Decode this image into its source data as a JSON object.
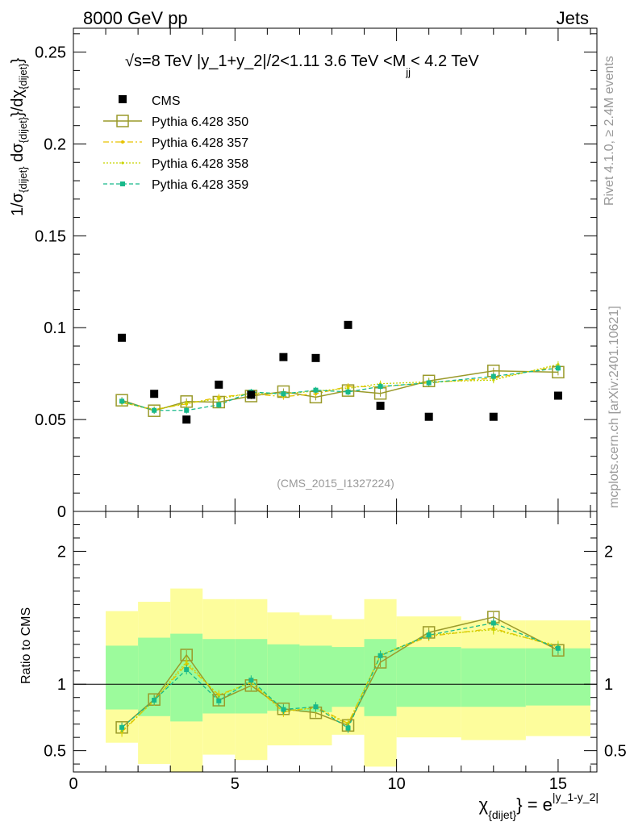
{
  "header": {
    "left": "8000 GeV pp",
    "right": "Jets"
  },
  "side": {
    "rivet": "Rivet 4.1.0, ≥ 2.4M events",
    "mcplots": "mcplots.cern.ch [arXiv:2401.10621]"
  },
  "colors": {
    "data": "#000000",
    "p350": "#9a9a2a",
    "p357": "#e6c200",
    "p358": "#c8d400",
    "p359": "#18b98a",
    "band_inner": "#9cfb9c",
    "band_outer": "#fdfd9c",
    "watermark": "#999999"
  },
  "chart_data": {
    "type": "scatter",
    "title": "√s=8 TeV |y_1+y_2|/2<1.11 3.6 TeV <M_jj< 4.2 TeV",
    "title_parts": {
      "sqrt": "√",
      "main": "s=8 TeV |y_1+y_2|/2<1.11 3.6 TeV <M",
      "sub": "jj",
      "end": "< 4.2 TeV"
    },
    "analysis_id": "(CMS_2015_I1327224)",
    "ylabel": "1/σ_{dijet} dσ_{dijet}/dχ_{dijet}",
    "ylabel_parts": {
      "a": "1/σ",
      "a_sub": "{dijet}",
      "b": " dσ",
      "b_sub": "{dijet}",
      "c": "}/dχ",
      "c_sub": "{dijet}",
      "d": "}"
    },
    "xlabel_parts": {
      "a": "χ",
      "a_sub": "{dijet}",
      "b": "} = e",
      "b_sup": "|y_1-y_2|"
    },
    "ratio_ylabel": "Ratio to CMS",
    "xlim": [
      0,
      16.2
    ],
    "ylim": [
      0,
      0.263
    ],
    "ratio_ylim": [
      0.34,
      2.3
    ],
    "x_ticks": [
      0,
      5,
      10,
      15
    ],
    "x_tick_labels": [
      "0",
      "5",
      "10",
      "15"
    ],
    "y_ticks": [
      0,
      0.05,
      0.1,
      0.15,
      0.2,
      0.25
    ],
    "y_tick_labels": [
      "0",
      "0.05",
      "0.1",
      "0.15",
      "0.2",
      "0.25"
    ],
    "ratio_ticks": [
      0.5,
      1,
      2
    ],
    "ratio_tick_labels": [
      "0.5",
      "1",
      "2"
    ],
    "bin_edges": [
      1,
      2,
      3,
      4,
      5,
      6,
      7,
      8,
      9,
      10,
      12,
      14,
      16
    ],
    "bin_centers": [
      1.5,
      2.5,
      3.5,
      4.5,
      5.5,
      6.5,
      7.5,
      8.5,
      9.5,
      11,
      13,
      15
    ],
    "legend_position": "top-left",
    "series": [
      {
        "name": "CMS",
        "style": "data",
        "values": [
          0.0945,
          0.064,
          0.05,
          0.069,
          0.0635,
          0.084,
          0.0835,
          0.1015,
          0.0575,
          0.0515,
          0.0515,
          0.063
        ]
      },
      {
        "name": "Pythia 6.428 350",
        "style": "p350",
        "values": [
          0.0605,
          0.0548,
          0.0598,
          0.0595,
          0.0628,
          0.0652,
          0.0622,
          0.0658,
          0.0642,
          0.071,
          0.0765,
          0.0758
        ],
        "ratio": [
          0.675,
          0.885,
          1.22,
          0.88,
          0.99,
          0.815,
          0.785,
          0.69,
          1.165,
          1.39,
          1.505,
          1.255
        ]
      },
      {
        "name": "Pythia 6.428 357",
        "style": "p357",
        "values": [
          0.0592,
          0.0555,
          0.0585,
          0.0622,
          0.064,
          0.0625,
          0.064,
          0.068,
          0.0678,
          0.07,
          0.0725,
          0.079
        ],
        "ratio": [
          0.64,
          0.88,
          1.15,
          0.92,
          1.01,
          0.79,
          0.83,
          0.705,
          1.215,
          1.36,
          1.42,
          1.28
        ]
      },
      {
        "name": "Pythia 6.428 358",
        "style": "p358",
        "values": [
          0.0595,
          0.055,
          0.059,
          0.0612,
          0.0645,
          0.064,
          0.0655,
          0.067,
          0.0695,
          0.0705,
          0.0715,
          0.08
        ],
        "ratio": [
          0.65,
          0.875,
          1.17,
          0.91,
          1.02,
          0.8,
          0.82,
          0.7,
          1.22,
          1.37,
          1.41,
          1.29
        ]
      },
      {
        "name": "Pythia 6.428 359",
        "style": "p359",
        "values": [
          0.06,
          0.055,
          0.055,
          0.058,
          0.065,
          0.064,
          0.066,
          0.065,
          0.068,
          0.07,
          0.0735,
          0.078
        ],
        "ratio": [
          0.675,
          0.88,
          1.11,
          0.875,
          1.03,
          0.81,
          0.83,
          0.67,
          1.215,
          1.37,
          1.46,
          1.27
        ]
      }
    ],
    "band_inner": {
      "lo": [
        0.81,
        0.76,
        0.72,
        0.78,
        0.78,
        0.8,
        0.79,
        0.83,
        0.76,
        0.83,
        0.83,
        0.84
      ],
      "hi": [
        1.29,
        1.35,
        1.38,
        1.34,
        1.34,
        1.3,
        1.29,
        1.28,
        1.34,
        1.28,
        1.27,
        1.27
      ]
    },
    "band_outer": {
      "lo": [
        0.56,
        0.4,
        0.34,
        0.47,
        0.43,
        0.54,
        0.54,
        0.62,
        0.38,
        0.6,
        0.58,
        0.61
      ],
      "hi": [
        1.55,
        1.62,
        1.72,
        1.64,
        1.64,
        1.54,
        1.52,
        1.49,
        1.64,
        1.51,
        1.48,
        1.48
      ]
    }
  }
}
